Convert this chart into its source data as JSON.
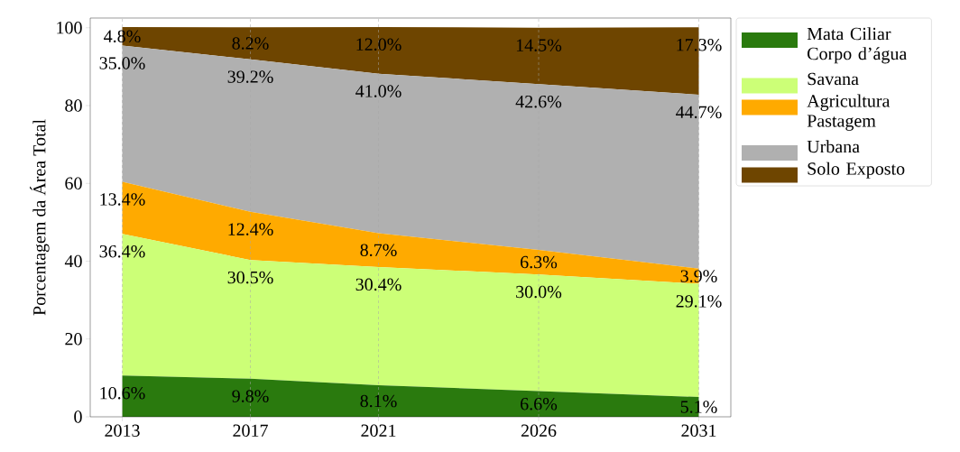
{
  "chart_data": {
    "type": "area",
    "stacked": true,
    "ylabel": "Porcentagem da Área Total",
    "x": [
      2013,
      2017,
      2021,
      2026,
      2031
    ],
    "xlim": [
      2012,
      2032
    ],
    "xticks": [
      2013,
      2017,
      2021,
      2026,
      2031
    ],
    "ylim": [
      0,
      102.5
    ],
    "yticks": [
      0,
      20,
      40,
      60,
      80,
      100
    ],
    "grid": "x",
    "legend": "right",
    "series": [
      {
        "name": "Mata Ciliar Corpo d’água",
        "color": "#2a7a0e",
        "values": [
          10.6,
          9.8,
          8.1,
          6.6,
          5.1
        ],
        "value_labels": [
          "10.6%",
          "9.8%",
          "8.1%",
          "6.6%",
          "5.1%"
        ]
      },
      {
        "name": "Savana",
        "color": "#ccff77",
        "values": [
          36.4,
          30.5,
          30.4,
          30.0,
          29.1
        ],
        "value_labels": [
          "36.4%",
          "30.5%",
          "30.4%",
          "30.0%",
          "29.1%"
        ]
      },
      {
        "name": "Agricultura Pastagem",
        "color": "#ffaa00",
        "values": [
          13.4,
          12.4,
          8.7,
          6.3,
          3.9
        ],
        "value_labels": [
          "13.4%",
          "12.4%",
          "8.7%",
          "6.3%",
          "3.9%"
        ]
      },
      {
        "name": "Urbana",
        "color": "#b0b0b0",
        "values": [
          35.0,
          39.2,
          41.0,
          42.6,
          44.7
        ],
        "value_labels": [
          "35.0%",
          "39.2%",
          "41.0%",
          "42.6%",
          "44.7%"
        ]
      },
      {
        "name": "Solo Exposto",
        "color": "#6e4500",
        "values": [
          4.8,
          8.2,
          12.0,
          14.5,
          17.3
        ],
        "value_labels": [
          "4.8%",
          "8.2%",
          "12.0%",
          "14.5%",
          "17.3%"
        ]
      }
    ]
  }
}
